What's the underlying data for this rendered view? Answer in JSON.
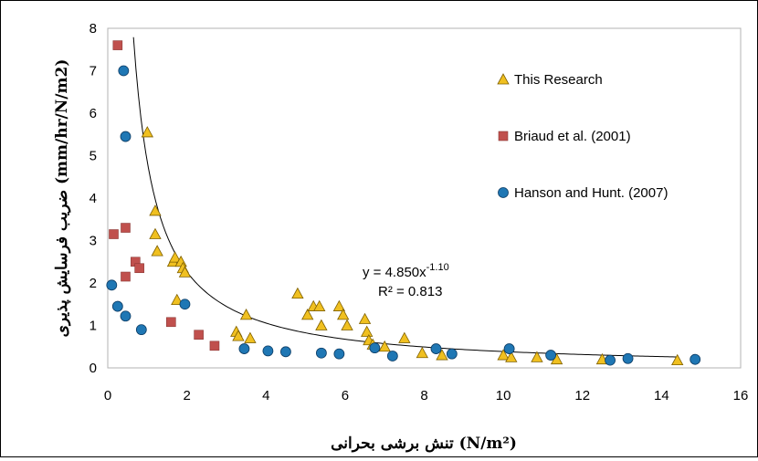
{
  "chart_data": {
    "type": "scatter",
    "xlabel": "(N/m²) تنش برشی بحرانی",
    "ylabel": "ضریب فرسایش پذیری (mm/hr/N/m2)",
    "xlim": [
      0,
      16
    ],
    "ylim": [
      0,
      8
    ],
    "x_ticks": [
      "0",
      "2",
      "4",
      "6",
      "8",
      "10",
      "12",
      "14",
      "16"
    ],
    "y_ticks": [
      "0",
      "1",
      "2",
      "3",
      "4",
      "5",
      "6",
      "7",
      "8"
    ],
    "grid": false,
    "legend_position": "top-right",
    "series": [
      {
        "name": "This Research",
        "marker": "triangle",
        "color": "#f0c020",
        "points": [
          [
            1.0,
            5.55
          ],
          [
            1.2,
            3.7
          ],
          [
            1.2,
            3.15
          ],
          [
            1.25,
            2.75
          ],
          [
            1.65,
            2.5
          ],
          [
            1.7,
            2.6
          ],
          [
            1.85,
            2.5
          ],
          [
            1.9,
            2.35
          ],
          [
            1.95,
            2.25
          ],
          [
            1.75,
            1.6
          ],
          [
            3.25,
            0.85
          ],
          [
            3.3,
            0.75
          ],
          [
            3.5,
            1.25
          ],
          [
            3.6,
            0.7
          ],
          [
            4.8,
            1.75
          ],
          [
            5.05,
            1.25
          ],
          [
            5.2,
            1.45
          ],
          [
            5.35,
            1.45
          ],
          [
            5.4,
            1.0
          ],
          [
            5.85,
            1.45
          ],
          [
            5.95,
            1.25
          ],
          [
            6.05,
            1.0
          ],
          [
            6.5,
            1.15
          ],
          [
            6.55,
            0.85
          ],
          [
            6.6,
            0.65
          ],
          [
            6.7,
            0.55
          ],
          [
            7.0,
            0.5
          ],
          [
            7.5,
            0.7
          ],
          [
            7.95,
            0.35
          ],
          [
            8.45,
            0.3
          ],
          [
            10.0,
            0.3
          ],
          [
            10.2,
            0.25
          ],
          [
            10.85,
            0.25
          ],
          [
            11.35,
            0.2
          ],
          [
            12.5,
            0.2
          ],
          [
            14.4,
            0.18
          ]
        ]
      },
      {
        "name": "Briaud et al. (2001)",
        "marker": "square",
        "color": "#c0504d",
        "points": [
          [
            0.25,
            7.6
          ],
          [
            0.15,
            3.15
          ],
          [
            0.45,
            3.3
          ],
          [
            0.45,
            2.15
          ],
          [
            0.7,
            2.5
          ],
          [
            0.8,
            2.35
          ],
          [
            1.6,
            1.08
          ],
          [
            2.3,
            0.78
          ],
          [
            2.7,
            0.52
          ]
        ]
      },
      {
        "name": "Hanson and Hunt. (2007)",
        "marker": "circle",
        "color": "#1f77b4",
        "points": [
          [
            0.4,
            7.0
          ],
          [
            0.45,
            5.45
          ],
          [
            0.1,
            1.95
          ],
          [
            0.25,
            1.45
          ],
          [
            0.45,
            1.22
          ],
          [
            0.85,
            0.9
          ],
          [
            1.95,
            1.5
          ],
          [
            3.45,
            0.45
          ],
          [
            4.05,
            0.4
          ],
          [
            4.5,
            0.38
          ],
          [
            5.4,
            0.35
          ],
          [
            5.85,
            0.33
          ],
          [
            6.75,
            0.47
          ],
          [
            7.2,
            0.28
          ],
          [
            8.3,
            0.45
          ],
          [
            8.7,
            0.33
          ],
          [
            10.15,
            0.45
          ],
          [
            11.2,
            0.3
          ],
          [
            12.7,
            0.18
          ],
          [
            13.15,
            0.22
          ],
          [
            14.85,
            0.2
          ]
        ]
      }
    ],
    "trendline": {
      "type": "power",
      "coefficient": 4.85,
      "exponent": -1.1,
      "equation_base": "y = 4.850x",
      "equation_exponent": "-1.10",
      "r2_label": "R² = 0.813",
      "x_range": [
        0.65,
        14.4
      ]
    }
  }
}
